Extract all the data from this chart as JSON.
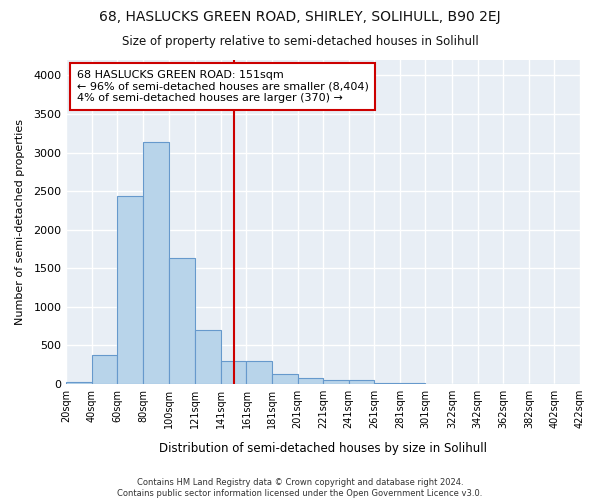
{
  "title": "68, HASLUCKS GREEN ROAD, SHIRLEY, SOLIHULL, B90 2EJ",
  "subtitle": "Size of property relative to semi-detached houses in Solihull",
  "xlabel": "Distribution of semi-detached houses by size in Solihull",
  "ylabel": "Number of semi-detached properties",
  "footnote": "Contains HM Land Registry data © Crown copyright and database right 2024.\nContains public sector information licensed under the Open Government Licence v3.0.",
  "bar_color": "#b8d4ea",
  "bar_edge_color": "#6699cc",
  "background_color": "#e8eef5",
  "grid_color": "#ffffff",
  "fig_background": "#ffffff",
  "vline_color": "#cc0000",
  "vline_x": 151,
  "annotation_box_facecolor": "#ffffff",
  "annotation_border_color": "#cc0000",
  "annotation_text_line1": "68 HASLUCKS GREEN ROAD: 151sqm",
  "annotation_text_line2": "← 96% of semi-detached houses are smaller (8,404)",
  "annotation_text_line3": "4% of semi-detached houses are larger (370) →",
  "bins": [
    20,
    40,
    60,
    80,
    100,
    121,
    141,
    161,
    181,
    201,
    221,
    241,
    261,
    281,
    301,
    322,
    342,
    362,
    382,
    402,
    422
  ],
  "bin_labels": [
    "20sqm",
    "40sqm",
    "60sqm",
    "80sqm",
    "100sqm",
    "121sqm",
    "141sqm",
    "161sqm",
    "181sqm",
    "201sqm",
    "221sqm",
    "241sqm",
    "261sqm",
    "281sqm",
    "301sqm",
    "322sqm",
    "342sqm",
    "362sqm",
    "382sqm",
    "402sqm",
    "422sqm"
  ],
  "values": [
    30,
    375,
    2430,
    3140,
    1630,
    700,
    300,
    300,
    130,
    75,
    50,
    50,
    10,
    5,
    3,
    2,
    1,
    1,
    0,
    0
  ],
  "ylim": [
    0,
    4200
  ],
  "yticks": [
    0,
    500,
    1000,
    1500,
    2000,
    2500,
    3000,
    3500,
    4000
  ]
}
